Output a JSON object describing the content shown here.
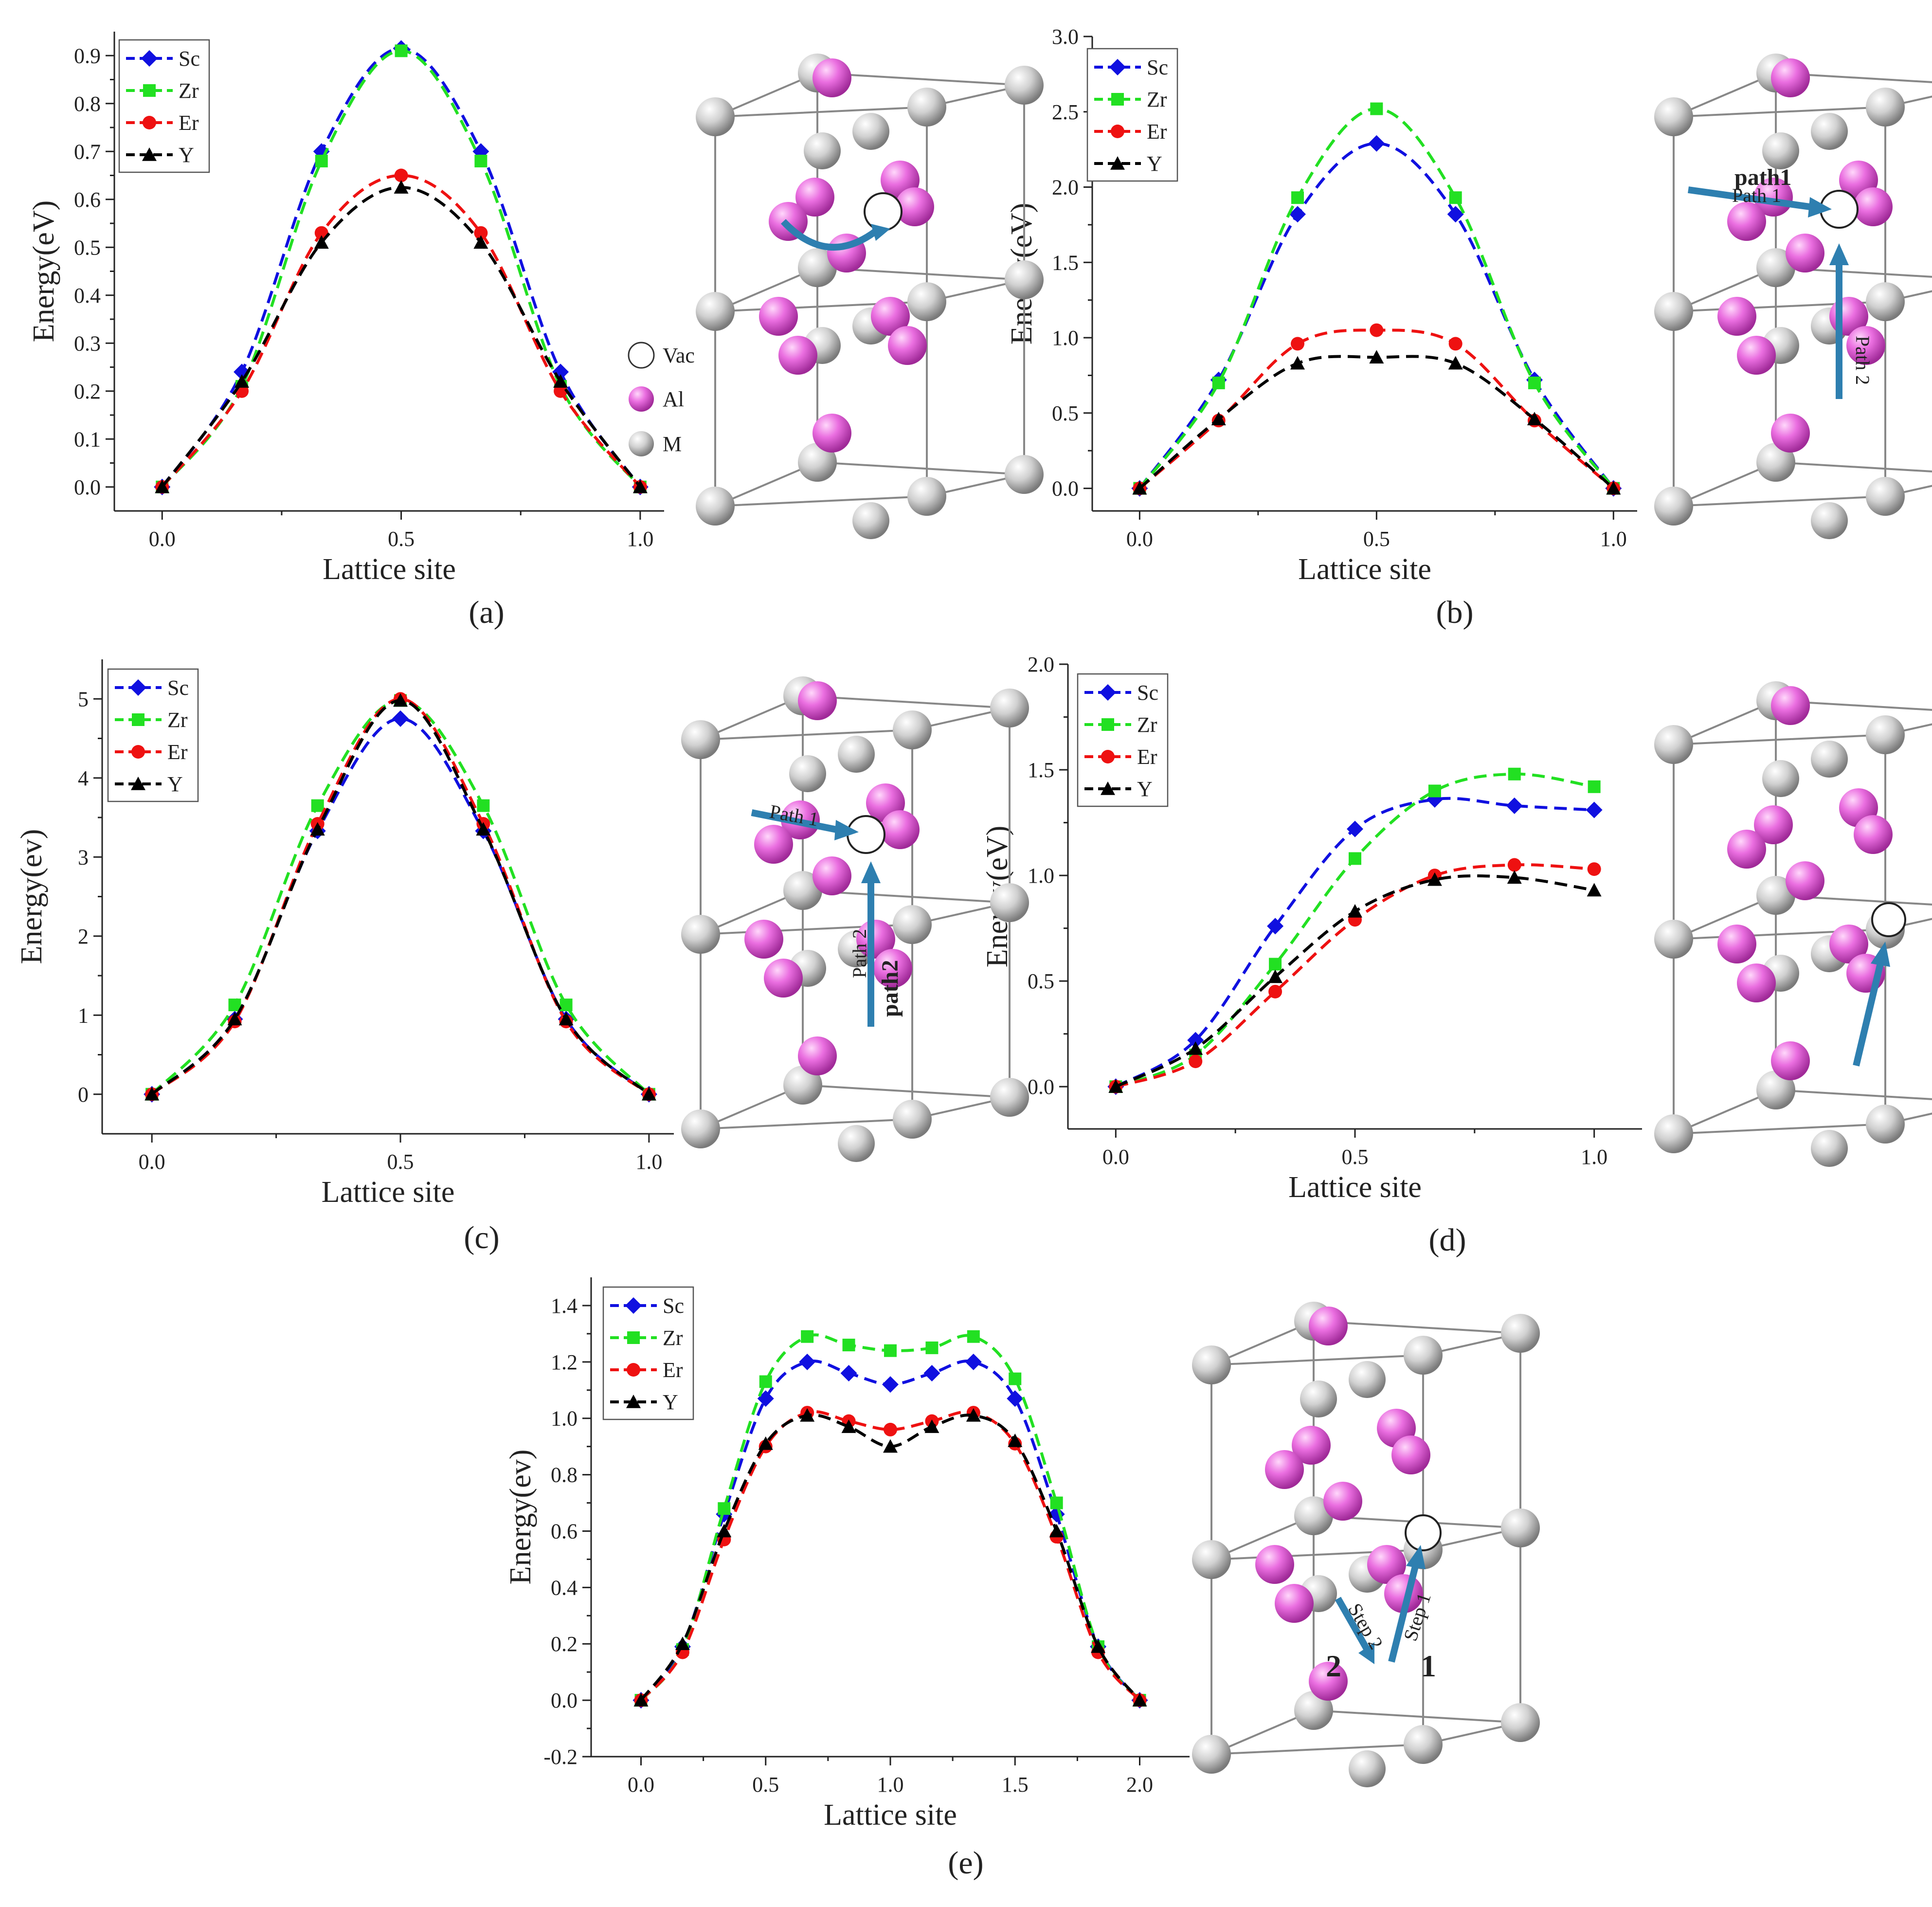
{
  "colors": {
    "Sc": "#1010e0",
    "Zr": "#22e022",
    "Er": "#ee1111",
    "Y": "#000000",
    "al_atom": "#e85ee0",
    "m_atom": "#c8c8c8",
    "arrow": "#2e7fb0"
  },
  "atom_legend": {
    "vac": "Vac",
    "al": "Al",
    "m": "M"
  },
  "crystal_labels": {
    "b_path1": "path1",
    "b_path1_small": "Path 1",
    "b_path2_small": "Path 2",
    "c_path1_small": "Path 1",
    "c_path2": "path2",
    "c_path2_small": "Path 2",
    "e_step1": "Step 1",
    "e_step2": "Step 2",
    "e_num1": "1",
    "e_num2": "2"
  },
  "chart_data": [
    {
      "id": "a",
      "panel_label": "(a)",
      "type": "line",
      "xlabel": "Lattice site",
      "ylabel": "Energy(eV)",
      "xlim": [
        -0.1,
        1.05
      ],
      "ylim": [
        -0.05,
        0.95
      ],
      "xticks": [
        0.0,
        0.5,
        1.0
      ],
      "xtick_labels": [
        "0.0",
        "0.5",
        "1.0"
      ],
      "yticks": [
        0.0,
        0.1,
        0.2,
        0.3,
        0.4,
        0.5,
        0.6,
        0.7,
        0.8,
        0.9
      ],
      "ytick_labels": [
        "0.0",
        "0.1",
        "0.2",
        "0.3",
        "0.4",
        "0.5",
        "0.6",
        "0.7",
        "0.8",
        "0.9"
      ],
      "legend": [
        "Sc",
        "Zr",
        "Er",
        "Y"
      ],
      "x": [
        0,
        0.1667,
        0.3333,
        0.5,
        0.6667,
        0.8333,
        1.0
      ],
      "series": [
        {
          "name": "Sc",
          "values": [
            0,
            0.24,
            0.7,
            0.915,
            0.7,
            0.24,
            0
          ]
        },
        {
          "name": "Zr",
          "values": [
            0,
            0.21,
            0.68,
            0.91,
            0.68,
            0.21,
            0
          ]
        },
        {
          "name": "Er",
          "values": [
            0,
            0.2,
            0.53,
            0.65,
            0.53,
            0.2,
            0
          ]
        },
        {
          "name": "Y",
          "values": [
            0,
            0.22,
            0.51,
            0.625,
            0.51,
            0.22,
            0
          ]
        }
      ]
    },
    {
      "id": "b",
      "panel_label": "(b)",
      "type": "line",
      "xlabel": "Lattice site",
      "ylabel": "Energy(eV)",
      "xlim": [
        -0.1,
        1.05
      ],
      "ylim": [
        -0.15,
        3.0
      ],
      "xticks": [
        0.0,
        0.5,
        1.0
      ],
      "xtick_labels": [
        "0.0",
        "0.5",
        "1.0"
      ],
      "yticks": [
        0.0,
        0.5,
        1.0,
        1.5,
        2.0,
        2.5,
        3.0
      ],
      "ytick_labels": [
        "0.0",
        "0.5",
        "1.0",
        "1.5",
        "2.0",
        "2.5",
        "3.0"
      ],
      "legend": [
        "Sc",
        "Zr",
        "Er",
        "Y"
      ],
      "x": [
        0,
        0.1667,
        0.3333,
        0.5,
        0.6667,
        0.8333,
        1.0
      ],
      "series": [
        {
          "name": "Sc",
          "values": [
            0,
            0.72,
            1.82,
            2.29,
            1.82,
            0.72,
            0
          ]
        },
        {
          "name": "Zr",
          "values": [
            0,
            0.7,
            1.93,
            2.52,
            1.93,
            0.7,
            0
          ]
        },
        {
          "name": "Er",
          "values": [
            0,
            0.45,
            0.96,
            1.05,
            0.96,
            0.45,
            0
          ]
        },
        {
          "name": "Y",
          "values": [
            0,
            0.46,
            0.83,
            0.87,
            0.83,
            0.46,
            0
          ]
        }
      ]
    },
    {
      "id": "c",
      "panel_label": "(c)",
      "type": "line",
      "xlabel": "Lattice site",
      "ylabel": "Energy(ev)",
      "xlim": [
        -0.1,
        1.05
      ],
      "ylim": [
        -0.5,
        5.5
      ],
      "xticks": [
        0.0,
        0.5,
        1.0
      ],
      "xtick_labels": [
        "0.0",
        "0.5",
        "1.0"
      ],
      "yticks": [
        0,
        1,
        2,
        3,
        4,
        5
      ],
      "ytick_labels": [
        "0",
        "1",
        "2",
        "3",
        "4",
        "5"
      ],
      "legend": [
        "Sc",
        "Zr",
        "Er",
        "Y"
      ],
      "x": [
        0,
        0.1667,
        0.3333,
        0.5,
        0.6667,
        0.8333,
        1.0
      ],
      "series": [
        {
          "name": "Sc",
          "values": [
            0,
            0.95,
            3.33,
            4.75,
            3.33,
            0.95,
            0
          ]
        },
        {
          "name": "Zr",
          "values": [
            0,
            1.13,
            3.65,
            4.98,
            3.65,
            1.13,
            0
          ]
        },
        {
          "name": "Er",
          "values": [
            0,
            0.92,
            3.42,
            5.0,
            3.42,
            0.92,
            0
          ]
        },
        {
          "name": "Y",
          "values": [
            0,
            0.95,
            3.35,
            4.98,
            3.35,
            0.95,
            0
          ]
        }
      ]
    },
    {
      "id": "d",
      "panel_label": "(d)",
      "type": "line",
      "xlabel": "Lattice site",
      "ylabel": "Energy(eV)",
      "xlim": [
        -0.1,
        1.1
      ],
      "ylim": [
        -0.2,
        2.0
      ],
      "xticks": [
        0.0,
        0.5,
        1.0
      ],
      "xtick_labels": [
        "0.0",
        "0.5",
        "1.0"
      ],
      "yticks": [
        0.0,
        0.5,
        1.0,
        1.5,
        2.0
      ],
      "ytick_labels": [
        "0.0",
        "0.5",
        "1.0",
        "1.5",
        "2.0"
      ],
      "legend": [
        "Sc",
        "Zr",
        "Er",
        "Y"
      ],
      "x": [
        0,
        0.1667,
        0.3333,
        0.5,
        0.6667,
        0.8333,
        1.0
      ],
      "series": [
        {
          "name": "Sc",
          "values": [
            0,
            0.22,
            0.76,
            1.22,
            1.36,
            1.33,
            1.31
          ]
        },
        {
          "name": "Zr",
          "values": [
            0,
            0.15,
            0.58,
            1.08,
            1.4,
            1.48,
            1.42
          ]
        },
        {
          "name": "Er",
          "values": [
            0,
            0.12,
            0.45,
            0.79,
            1.0,
            1.05,
            1.03
          ]
        },
        {
          "name": "Y",
          "values": [
            0,
            0.18,
            0.52,
            0.83,
            0.98,
            0.99,
            0.93
          ]
        }
      ]
    },
    {
      "id": "e",
      "panel_label": "(e)",
      "type": "line",
      "xlabel": "Lattice site",
      "ylabel": "Energy(ev)",
      "xlim": [
        -0.2,
        2.2
      ],
      "ylim": [
        -0.2,
        1.5
      ],
      "xticks": [
        0.0,
        0.5,
        1.0,
        1.5,
        2.0
      ],
      "xtick_labels": [
        "0.0",
        "0.5",
        "1.0",
        "1.5",
        "2.0"
      ],
      "yticks": [
        -0.2,
        0.0,
        0.2,
        0.4,
        0.6,
        0.8,
        1.0,
        1.2,
        1.4
      ],
      "ytick_labels": [
        "-0.2",
        "0.0",
        "0.2",
        "0.4",
        "0.6",
        "0.8",
        "1.0",
        "1.2",
        "1.4"
      ],
      "legend": [
        "Sc",
        "Zr",
        "Er",
        "Y"
      ],
      "x": [
        0,
        0.1667,
        0.3333,
        0.5,
        0.6667,
        0.8333,
        1.0,
        1.1667,
        1.3333,
        1.5,
        1.6667,
        1.8333,
        2.0
      ],
      "series": [
        {
          "name": "Sc",
          "values": [
            0,
            0.19,
            0.66,
            1.07,
            1.2,
            1.16,
            1.12,
            1.16,
            1.2,
            1.07,
            0.66,
            0.19,
            0
          ]
        },
        {
          "name": "Zr",
          "values": [
            0,
            0.18,
            0.68,
            1.13,
            1.29,
            1.26,
            1.24,
            1.25,
            1.29,
            1.14,
            0.7,
            0.19,
            0
          ]
        },
        {
          "name": "Er",
          "values": [
            0,
            0.17,
            0.57,
            0.9,
            1.02,
            0.99,
            0.96,
            0.99,
            1.02,
            0.91,
            0.58,
            0.17,
            0
          ]
        },
        {
          "name": "Y",
          "values": [
            0,
            0.2,
            0.6,
            0.91,
            1.01,
            0.97,
            0.9,
            0.97,
            1.01,
            0.92,
            0.6,
            0.19,
            0
          ]
        }
      ]
    }
  ]
}
